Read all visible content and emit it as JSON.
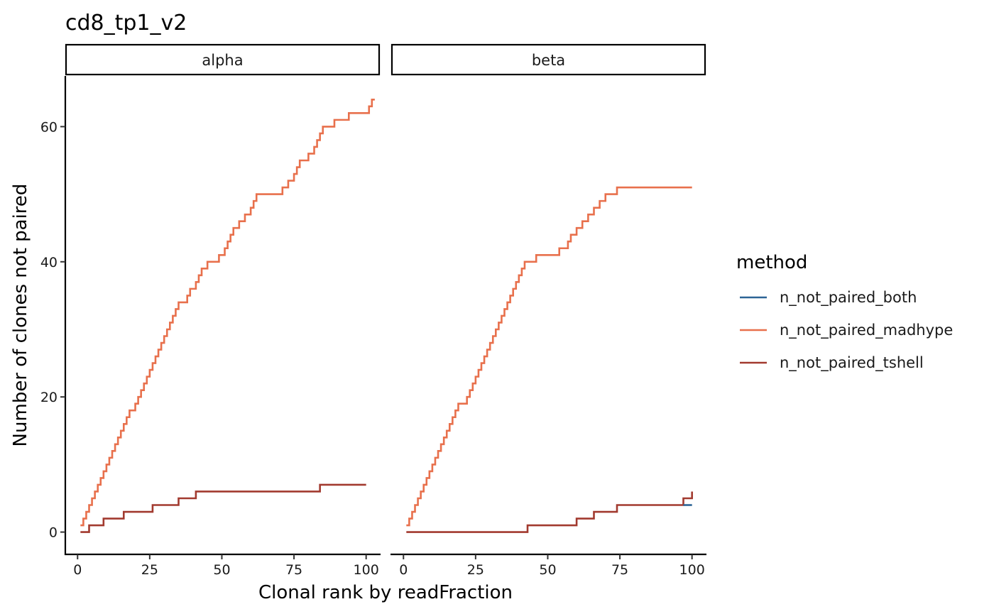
{
  "chart_data": {
    "type": "line",
    "step": true,
    "title": "cd8_tp1_v2",
    "xlabel": "Clonal rank by readFraction",
    "ylabel": "Number of clones not paired",
    "xlim": [
      -4,
      105
    ],
    "ylim": [
      -3.3,
      67.5
    ],
    "x_ticks": [
      0,
      25,
      50,
      75,
      100
    ],
    "y_ticks": [
      0,
      20,
      40,
      60
    ],
    "grid": false,
    "legend": {
      "title": "method",
      "position": "right",
      "entries": [
        {
          "name": "n_not_paired_both",
          "color": "#2C6496"
        },
        {
          "name": "n_not_paired_madhype",
          "color": "#E8704C"
        },
        {
          "name": "n_not_paired_tshell",
          "color": "#A23A2F"
        }
      ]
    },
    "facets": [
      {
        "label": "alpha",
        "series": [
          {
            "name": "n_not_paired_madhype",
            "color": "#E8704C",
            "points": [
              [
                1,
                1
              ],
              [
                2,
                2
              ],
              [
                3,
                3
              ],
              [
                4,
                4
              ],
              [
                5,
                5
              ],
              [
                6,
                6
              ],
              [
                7,
                7
              ],
              [
                8,
                8
              ],
              [
                9,
                9
              ],
              [
                10,
                10
              ],
              [
                11,
                11
              ],
              [
                12,
                12
              ],
              [
                13,
                13
              ],
              [
                14,
                14
              ],
              [
                15,
                15
              ],
              [
                16,
                16
              ],
              [
                17,
                17
              ],
              [
                18,
                18
              ],
              [
                20,
                19
              ],
              [
                21,
                20
              ],
              [
                22,
                21
              ],
              [
                23,
                22
              ],
              [
                24,
                23
              ],
              [
                25,
                24
              ],
              [
                26,
                25
              ],
              [
                27,
                26
              ],
              [
                28,
                27
              ],
              [
                29,
                28
              ],
              [
                30,
                29
              ],
              [
                31,
                30
              ],
              [
                32,
                31
              ],
              [
                33,
                32
              ],
              [
                34,
                33
              ],
              [
                35,
                34
              ],
              [
                38,
                35
              ],
              [
                39,
                36
              ],
              [
                41,
                37
              ],
              [
                42,
                38
              ],
              [
                43,
                39
              ],
              [
                45,
                40
              ],
              [
                49,
                41
              ],
              [
                51,
                42
              ],
              [
                52,
                43
              ],
              [
                53,
                44
              ],
              [
                54,
                45
              ],
              [
                56,
                46
              ],
              [
                58,
                47
              ],
              [
                60,
                48
              ],
              [
                61,
                49
              ],
              [
                62,
                50
              ],
              [
                71,
                51
              ],
              [
                73,
                52
              ],
              [
                75,
                53
              ],
              [
                76,
                54
              ],
              [
                77,
                55
              ],
              [
                80,
                56
              ],
              [
                82,
                57
              ],
              [
                83,
                58
              ],
              [
                84,
                59
              ],
              [
                85,
                60
              ],
              [
                89,
                61
              ],
              [
                94,
                62
              ],
              [
                101,
                63
              ],
              [
                102,
                64
              ],
              [
                103,
                64
              ]
            ]
          },
          {
            "name": "n_not_paired_tshell",
            "color": "#A23A2F",
            "points": [
              [
                1,
                0
              ],
              [
                4,
                1
              ],
              [
                9,
                2
              ],
              [
                16,
                3
              ],
              [
                26,
                4
              ],
              [
                35,
                5
              ],
              [
                41,
                6
              ],
              [
                84,
                7
              ],
              [
                100,
                7
              ]
            ]
          },
          {
            "name": "n_not_paired_both",
            "color": "#2C6496",
            "points": []
          }
        ]
      },
      {
        "label": "beta",
        "series": [
          {
            "name": "n_not_paired_madhype",
            "color": "#E8704C",
            "points": [
              [
                1,
                1
              ],
              [
                2,
                2
              ],
              [
                3,
                3
              ],
              [
                4,
                4
              ],
              [
                5,
                5
              ],
              [
                6,
                6
              ],
              [
                7,
                7
              ],
              [
                8,
                8
              ],
              [
                9,
                9
              ],
              [
                10,
                10
              ],
              [
                11,
                11
              ],
              [
                12,
                12
              ],
              [
                13,
                13
              ],
              [
                14,
                14
              ],
              [
                15,
                15
              ],
              [
                16,
                16
              ],
              [
                17,
                17
              ],
              [
                18,
                18
              ],
              [
                19,
                19
              ],
              [
                22,
                20
              ],
              [
                23,
                21
              ],
              [
                24,
                22
              ],
              [
                25,
                23
              ],
              [
                26,
                24
              ],
              [
                27,
                25
              ],
              [
                28,
                26
              ],
              [
                29,
                27
              ],
              [
                30,
                28
              ],
              [
                31,
                29
              ],
              [
                32,
                30
              ],
              [
                33,
                31
              ],
              [
                34,
                32
              ],
              [
                35,
                33
              ],
              [
                36,
                34
              ],
              [
                37,
                35
              ],
              [
                38,
                36
              ],
              [
                39,
                37
              ],
              [
                40,
                38
              ],
              [
                41,
                39
              ],
              [
                42,
                40
              ],
              [
                46,
                41
              ],
              [
                54,
                42
              ],
              [
                57,
                43
              ],
              [
                58,
                44
              ],
              [
                60,
                45
              ],
              [
                62,
                46
              ],
              [
                64,
                47
              ],
              [
                66,
                48
              ],
              [
                68,
                49
              ],
              [
                70,
                50
              ],
              [
                74,
                51
              ],
              [
                100,
                51
              ]
            ]
          },
          {
            "name": "n_not_paired_tshell",
            "color": "#A23A2F",
            "points": [
              [
                1,
                0
              ],
              [
                43,
                1
              ],
              [
                60,
                2
              ],
              [
                66,
                3
              ],
              [
                74,
                4
              ],
              [
                97,
                5
              ],
              [
                100,
                6
              ]
            ]
          },
          {
            "name": "n_not_paired_both",
            "color": "#2C6496",
            "points": [
              [
                97,
                4
              ],
              [
                100,
                4
              ]
            ]
          }
        ]
      }
    ]
  }
}
